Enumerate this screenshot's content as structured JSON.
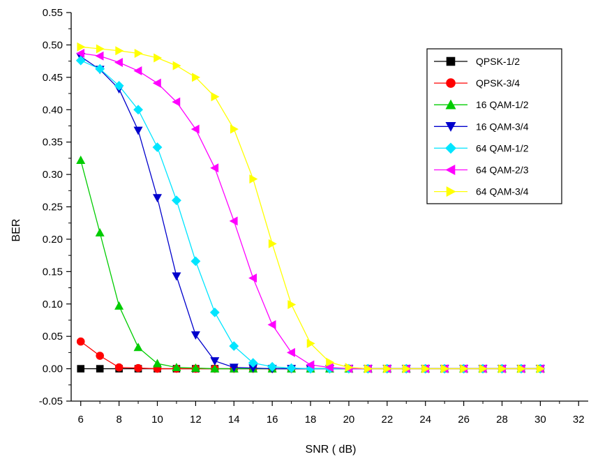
{
  "chart_data": {
    "type": "line",
    "title": "",
    "xlabel": "SNR (  dB)",
    "ylabel": "BER",
    "xlim": [
      5.5,
      32.5
    ],
    "ylim": [
      -0.05,
      0.55
    ],
    "x_ticks": [
      6,
      8,
      10,
      12,
      14,
      16,
      18,
      20,
      22,
      24,
      26,
      28,
      30,
      32
    ],
    "x_tick_labels": [
      "6",
      "8",
      "10",
      "12",
      "14",
      "16",
      "18",
      "20",
      "22",
      "24",
      "26",
      "28",
      "30",
      "32"
    ],
    "y_ticks": [
      -0.05,
      0.0,
      0.05,
      0.1,
      0.15,
      0.2,
      0.25,
      0.3,
      0.35,
      0.4,
      0.45,
      0.5,
      0.55
    ],
    "y_tick_labels": [
      "-0.05",
      "0.00",
      "0.05",
      "0.10",
      "0.15",
      "0.20",
      "0.25",
      "0.30",
      "0.35",
      "0.40",
      "0.45",
      "0.50",
      "0.55"
    ],
    "grid": false,
    "legend_position": "top-right",
    "x": [
      6,
      7,
      8,
      9,
      10,
      11,
      12,
      13,
      14,
      15,
      16,
      17,
      18,
      19,
      20,
      21,
      22,
      23,
      24,
      25,
      26,
      27,
      28,
      29,
      30
    ],
    "series": [
      {
        "name": "QPSK-1/2",
        "color": "#000000",
        "marker": "square",
        "values": [
          0,
          0,
          0,
          0,
          0,
          0,
          0,
          0,
          0,
          0,
          0,
          0,
          0,
          0,
          0,
          0,
          0,
          0,
          0,
          0,
          0,
          0,
          0,
          0,
          0
        ]
      },
      {
        "name": "QPSK-3/4",
        "color": "#ff0000",
        "marker": "circle",
        "values": [
          0.042,
          0.02,
          0.002,
          0.001,
          0,
          0,
          0,
          0,
          0,
          0,
          0,
          0,
          0,
          0,
          0,
          0,
          0,
          0,
          0,
          0,
          0,
          0,
          0,
          0,
          0
        ]
      },
      {
        "name": "16 QAM-1/2",
        "color": "#00cc00",
        "marker": "triangle-up",
        "values": [
          0.322,
          0.21,
          0.097,
          0.033,
          0.008,
          0.002,
          0.001,
          0,
          0,
          0,
          0,
          0,
          0,
          0,
          0,
          0,
          0,
          0,
          0,
          0,
          0,
          0,
          0,
          0,
          0
        ]
      },
      {
        "name": "16 QAM-3/4",
        "color": "#0000cc",
        "marker": "triangle-down",
        "values": [
          0.482,
          0.462,
          0.432,
          0.368,
          0.264,
          0.143,
          0.052,
          0.012,
          0.002,
          0.001,
          0,
          0,
          0,
          0,
          0,
          0,
          0,
          0,
          0,
          0,
          0,
          0,
          0,
          0,
          0
        ]
      },
      {
        "name": "64 QAM-1/2",
        "color": "#00e5ff",
        "marker": "diamond",
        "values": [
          0.476,
          0.463,
          0.437,
          0.4,
          0.342,
          0.26,
          0.166,
          0.087,
          0.035,
          0.009,
          0.003,
          0.001,
          0,
          0,
          0,
          0,
          0,
          0,
          0,
          0,
          0,
          0,
          0,
          0,
          0
        ]
      },
      {
        "name": "64 QAM-2/3",
        "color": "#ff00ff",
        "marker": "triangle-left",
        "values": [
          0.487,
          0.483,
          0.473,
          0.46,
          0.441,
          0.412,
          0.37,
          0.31,
          0.228,
          0.14,
          0.068,
          0.025,
          0.006,
          0.002,
          0,
          0,
          0,
          0,
          0,
          0,
          0,
          0,
          0,
          0,
          0
        ]
      },
      {
        "name": "64 QAM-3/4",
        "color": "#ffff00",
        "marker": "triangle-right",
        "values": [
          0.497,
          0.494,
          0.491,
          0.487,
          0.48,
          0.468,
          0.45,
          0.42,
          0.37,
          0.293,
          0.193,
          0.099,
          0.039,
          0.01,
          0.002,
          0,
          0,
          0,
          0,
          0,
          0,
          0,
          0,
          0,
          0
        ]
      }
    ]
  }
}
